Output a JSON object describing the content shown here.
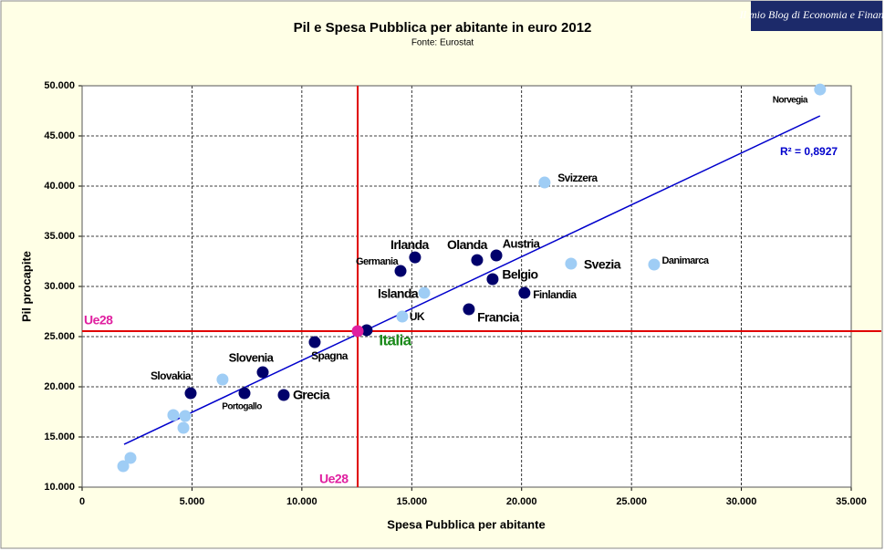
{
  "chart_data": {
    "type": "scatter",
    "title": "Pil e Spesa Pubblica per abitante in euro 2012",
    "subtitle": "Fonte: Eurostat",
    "watermark": "Il mio Blog di Economia e Finanza",
    "x_label": "Spesa Pubblica per abitante",
    "y_label": "Pil procapite",
    "xlim": [
      0,
      35000
    ],
    "ylim": [
      10000,
      50000
    ],
    "xticks": [
      0,
      {
        "value": 5000,
        "label": "5.000"
      },
      {
        "value": 10000,
        "label": "10.000"
      },
      {
        "value": 15000,
        "label": "15.000"
      },
      {
        "value": 20000,
        "label": "20.000"
      },
      {
        "value": 25000,
        "label": "25.000"
      },
      {
        "value": 30000,
        "label": "30.000"
      },
      {
        "value": 35000,
        "label": "35.000"
      }
    ],
    "yticks": [
      {
        "value": 10000,
        "label": "10.000"
      },
      {
        "value": 15000,
        "label": "15.000"
      },
      {
        "value": 20000,
        "label": "20.000"
      },
      {
        "value": 25000,
        "label": "25.000"
      },
      {
        "value": 30000,
        "label": "30.000"
      },
      {
        "value": 35000,
        "label": "35.000"
      },
      {
        "value": 40000,
        "label": "40.000"
      },
      {
        "value": 45000,
        "label": "45.000"
      },
      {
        "value": 50000,
        "label": "50.000"
      }
    ],
    "grid": true,
    "series": [
      {
        "color": "#00006b",
        "labels": [
          "Irlanda",
          "Germania",
          "Olanda",
          "Austria",
          "Belgio",
          "Finlandia",
          "Francia",
          "Italia",
          "Spagna",
          "Slovenia",
          "Grecia",
          "Portogallo",
          "Slovakia"
        ],
        "x": [
          15150,
          14490,
          17975,
          18850,
          18680,
          20130,
          17600,
          12950,
          10585,
          8220,
          9175,
          7390,
          4940
        ],
        "values": [
          32900,
          31540,
          32630,
          33090,
          30730,
          29360,
          27730,
          25640,
          24450,
          21450,
          19180,
          19360,
          19360
        ]
      },
      {
        "color": "#9fcdf5",
        "labels": [
          "Norvegia",
          "Svizzera",
          "Svezia",
          "Danimarca",
          "Islanda",
          "UK",
          null,
          null,
          null,
          null,
          null,
          null
        ],
        "x": [
          33580,
          21045,
          22250,
          26030,
          15570,
          14570,
          6390,
          4150,
          4690,
          4610,
          2200,
          1870
        ],
        "values": [
          49630,
          40360,
          32270,
          32180,
          29360,
          27000,
          20730,
          17180,
          17090,
          15910,
          12910,
          12090
        ]
      }
    ],
    "reference": {
      "label": "Ue28",
      "color": "#e020a0",
      "line_color": "#e00000",
      "x": 12540,
      "y": 25550
    },
    "trendline": {
      "color": "#0000cc",
      "label": "R² = 0,8927",
      "x": [
        1910,
        33580
      ],
      "values": [
        14270,
        47000
      ]
    }
  }
}
